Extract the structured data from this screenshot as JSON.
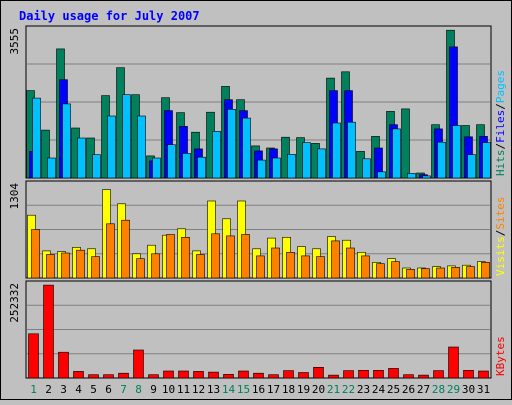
{
  "colors": {
    "hits": "#00805c",
    "files": "#0000ff",
    "pages": "#00c0ff",
    "visits": "#ffff00",
    "sites": "#ff8000",
    "kbytes": "#ff0000",
    "title": "#0000ff",
    "weekend_label": "#00805c",
    "background": "#c0c0c0"
  },
  "chart_data": {
    "type": "bar",
    "title": "Daily usage for July 2007",
    "categories": [
      "1",
      "2",
      "3",
      "4",
      "5",
      "6",
      "7",
      "8",
      "9",
      "10",
      "11",
      "12",
      "13",
      "14",
      "15",
      "16",
      "17",
      "18",
      "19",
      "20",
      "21",
      "22",
      "23",
      "24",
      "25",
      "26",
      "27",
      "28",
      "29",
      "30",
      "31"
    ],
    "weekend_days": [
      "1",
      "7",
      "8",
      "14",
      "15",
      "21",
      "22",
      "28",
      "29"
    ],
    "panels": [
      {
        "key": "hits_files_pages",
        "max_label": "3555",
        "ylim": [
          0,
          3555
        ],
        "side_labels": [
          {
            "text": "Hits",
            "color": "#00805c"
          },
          {
            "text": "/",
            "color": "#000000"
          },
          {
            "text": "Files",
            "color": "#0000ff"
          },
          {
            "text": "/",
            "color": "#000000"
          },
          {
            "text": "Pages",
            "color": "#00c0ff"
          }
        ],
        "series": [
          {
            "name": "Hits",
            "color": "#00805c",
            "values": [
              2100,
              1150,
              3100,
              1200,
              960,
              1980,
              2650,
              2000,
              530,
              1930,
              1570,
              1100,
              1580,
              2200,
              1880,
              770,
              720,
              980,
              970,
              830,
              2400,
              2550,
              640,
              1000,
              1600,
              1660,
              120,
              1280,
              3550,
              1260,
              1280
            ]
          },
          {
            "name": "Files",
            "color": "#0000ff",
            "values": [
              640,
              0,
              2360,
              0,
              0,
              0,
              0,
              0,
              410,
              1620,
              1240,
              700,
              0,
              1880,
              1620,
              650,
              700,
              0,
              0,
              0,
              2100,
              2100,
              0,
              720,
              1280,
              0,
              80,
              1180,
              3150,
              990,
              1000
            ]
          },
          {
            "name": "Pages",
            "color": "#00c0ff",
            "values": [
              1920,
              480,
              1780,
              960,
              560,
              1490,
              2000,
              1490,
              480,
              800,
              590,
              500,
              1120,
              1650,
              1440,
              430,
              480,
              570,
              850,
              700,
              1320,
              1340,
              460,
              150,
              1180,
              110,
              50,
              860,
              1260,
              560,
              850
            ]
          }
        ]
      },
      {
        "key": "visits_sites",
        "max_label": "1304",
        "ylim": [
          0,
          1304
        ],
        "side_labels": [
          {
            "text": "Visits",
            "color": "#ffff00"
          },
          {
            "text": "/",
            "color": "#000000"
          },
          {
            "text": "Sites",
            "color": "#ff8000"
          }
        ],
        "series": [
          {
            "name": "Visits",
            "color": "#ffff00",
            "values": [
              880,
              380,
              370,
              430,
              410,
              1240,
              1040,
              340,
              460,
              600,
              690,
              380,
              1080,
              830,
              1080,
              410,
              560,
              570,
              440,
              410,
              580,
              530,
              360,
              220,
              270,
              140,
              140,
              160,
              170,
              180,
              230
            ]
          },
          {
            "name": "Sites",
            "color": "#ff8000",
            "values": [
              680,
              330,
              350,
              390,
              300,
              760,
              810,
              270,
              340,
              610,
              570,
              330,
              620,
              590,
              610,
              310,
              420,
              360,
              310,
              300,
              520,
              420,
              310,
              200,
              230,
              120,
              130,
              140,
              150,
              160,
              220
            ]
          }
        ]
      },
      {
        "key": "kbytes",
        "max_label": "252332",
        "ylim": [
          0,
          252332
        ],
        "side_labels": [
          {
            "text": "KBytes",
            "color": "#ff0000"
          }
        ],
        "series": [
          {
            "name": "KBytes",
            "color": "#ff0000",
            "values": [
              120000,
              252000,
              70000,
              18000,
              9000,
              9000,
              13000,
              76000,
              9000,
              19000,
              19000,
              18000,
              16000,
              10000,
              19000,
              13000,
              9000,
              20000,
              15000,
              29000,
              8000,
              20000,
              21000,
              21000,
              26000,
              9000,
              8000,
              20000,
              84000,
              21000,
              19000
            ]
          }
        ]
      }
    ]
  }
}
